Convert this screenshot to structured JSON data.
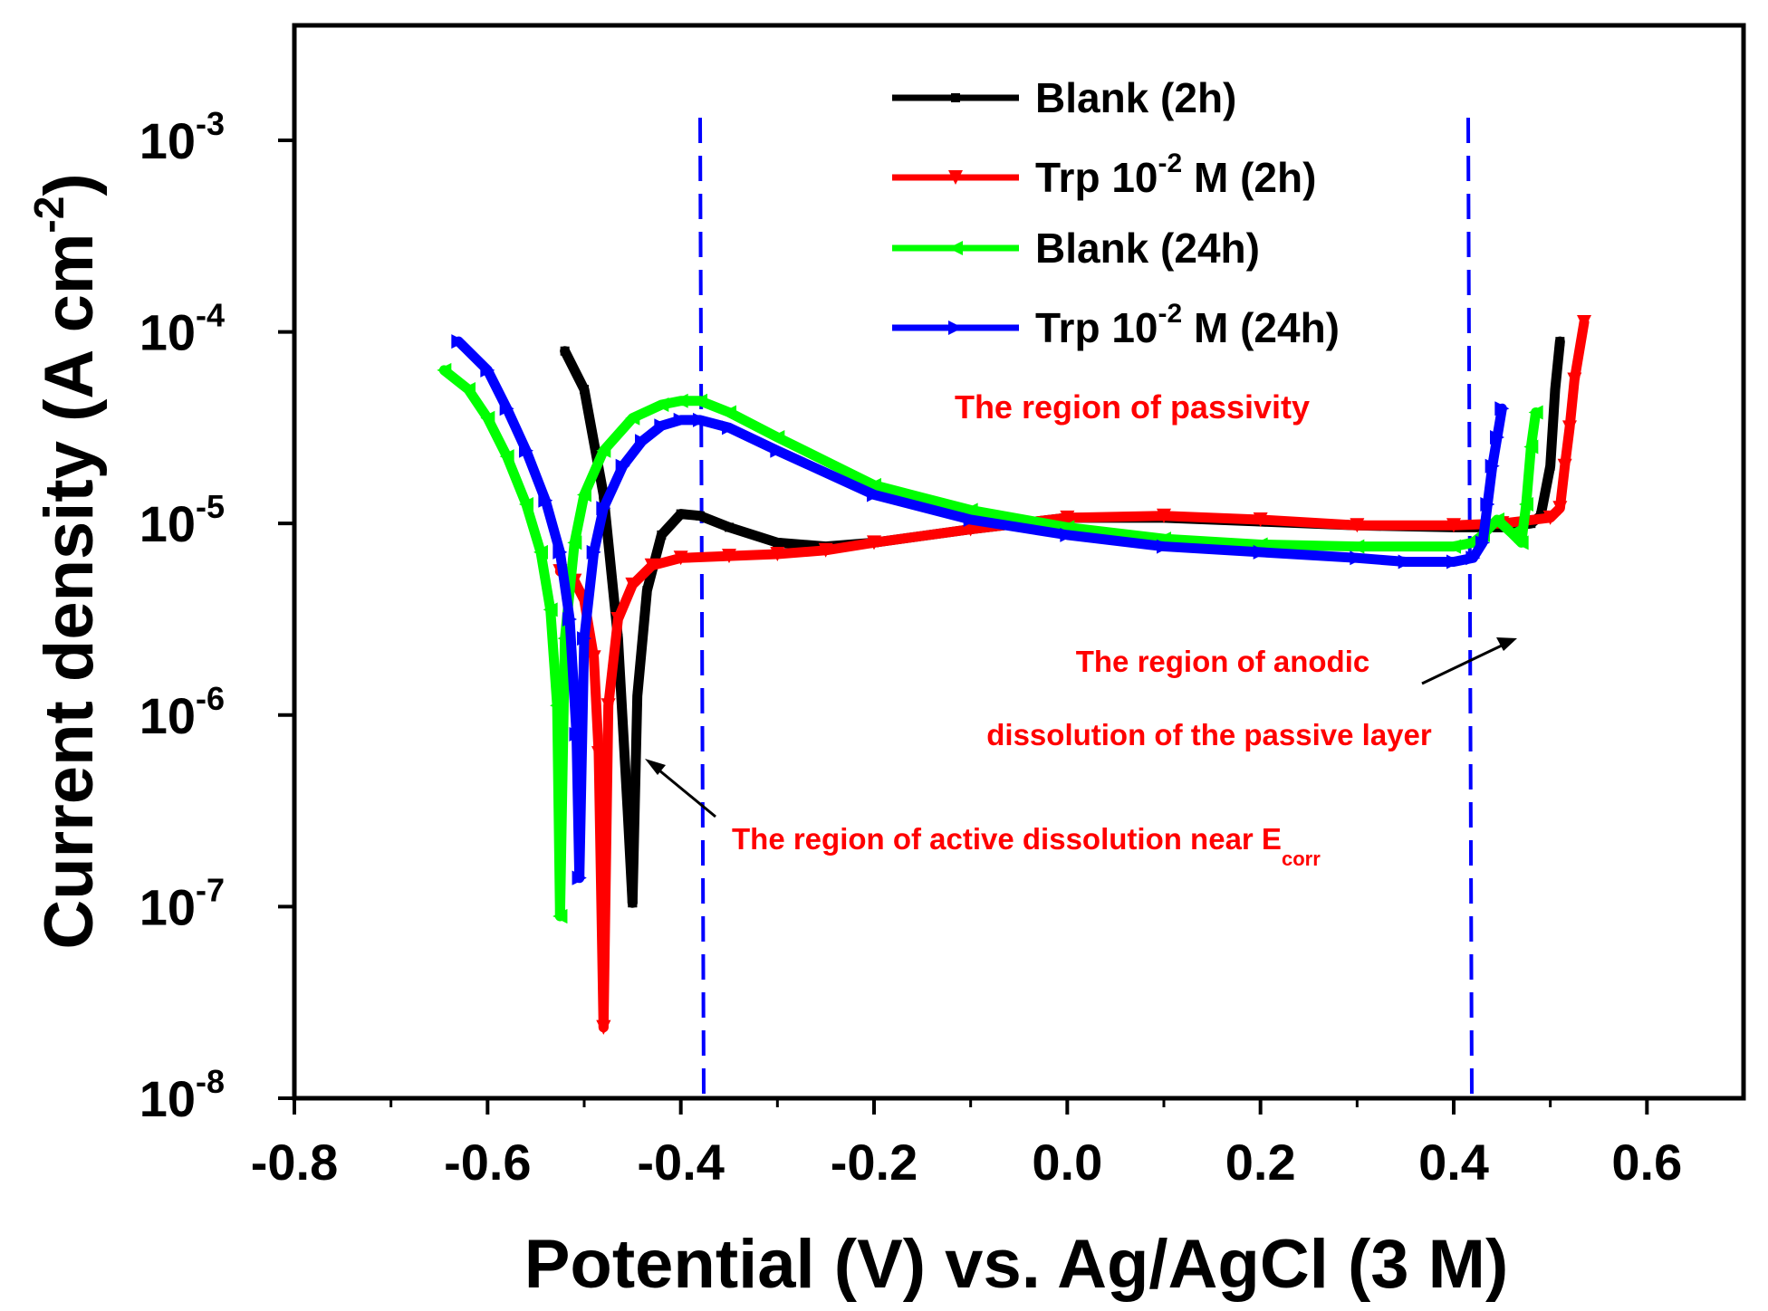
{
  "chart_data": {
    "type": "line",
    "title": "",
    "xlabel": "Potential (V) vs. Ag/AgCl (3 M)",
    "ylabel": {
      "main": "Current density (A cm",
      "exponent": "-2",
      "close": ")"
    },
    "xlim": [
      -0.8,
      0.7
    ],
    "ylim_log10": [
      -8,
      -2.4
    ],
    "y_scale": "log",
    "xticks": [
      {
        "value": -0.8,
        "label": "-0.8"
      },
      {
        "value": -0.6,
        "label": "-0.6"
      },
      {
        "value": -0.4,
        "label": "-0.4"
      },
      {
        "value": -0.2,
        "label": "-0.2"
      },
      {
        "value": 0.0,
        "label": "0.0"
      },
      {
        "value": 0.2,
        "label": "0.2"
      },
      {
        "value": 0.4,
        "label": "0.4"
      },
      {
        "value": 0.6,
        "label": "0.6"
      }
    ],
    "yticks": [
      {
        "value": -3,
        "base": "10",
        "exp": "-3"
      },
      {
        "value": -4,
        "base": "10",
        "exp": "-4"
      },
      {
        "value": -5,
        "base": "10",
        "exp": "-5"
      },
      {
        "value": -6,
        "base": "10",
        "exp": "-6"
      },
      {
        "value": -7,
        "base": "10",
        "exp": "-7"
      },
      {
        "value": -8,
        "base": "10",
        "exp": "-8"
      }
    ],
    "legend": {
      "placement": "top-right",
      "entries": [
        {
          "label_pre": "Blank (2h)",
          "sup": "",
          "label_post": "",
          "color": "#000000",
          "marker": "square"
        },
        {
          "label_pre": "Trp 10",
          "sup": "-2",
          "label_post": " M (2h)",
          "color": "#ff0000",
          "marker": "triangle-down"
        },
        {
          "label_pre": "Blank (24h)",
          "sup": "",
          "label_post": "",
          "color": "#00ff00",
          "marker": "triangle-left"
        },
        {
          "label_pre": " Trp 10",
          "sup": "-2",
          "label_post": " M (24h)",
          "color": "#0000ff",
          "marker": "triangle-right"
        }
      ]
    },
    "series": [
      {
        "name": "Blank (2h)",
        "color": "#000000",
        "marker": "square",
        "cathodic": {
          "x": [
            -0.52,
            -0.5,
            -0.48,
            -0.465,
            -0.455,
            -0.45
          ],
          "log_y": [
            -4.1,
            -4.3,
            -4.85,
            -5.6,
            -6.5,
            -6.98
          ]
        },
        "anodic": {
          "x": [
            -0.45,
            -0.445,
            -0.435,
            -0.42,
            -0.4,
            -0.38,
            -0.35,
            -0.3,
            -0.25,
            -0.2,
            -0.1,
            0.0,
            0.1,
            0.2,
            0.3,
            0.4,
            0.45,
            0.48,
            0.49,
            0.5,
            0.505,
            0.51
          ],
          "log_y": [
            -6.98,
            -5.9,
            -5.35,
            -5.06,
            -4.95,
            -4.96,
            -5.02,
            -5.1,
            -5.12,
            -5.1,
            -5.03,
            -4.97,
            -4.97,
            -4.99,
            -5.01,
            -5.02,
            -5.02,
            -5.0,
            -4.96,
            -4.7,
            -4.3,
            -4.05
          ]
        }
      },
      {
        "name": "Trp 10-2 M (2h)",
        "color": "#ff0000",
        "marker": "triangle-down",
        "cathodic": {
          "x": [
            -0.525,
            -0.51,
            -0.5,
            -0.49,
            -0.485,
            -0.48
          ],
          "log_y": [
            -5.25,
            -5.3,
            -5.4,
            -5.7,
            -6.2,
            -7.63
          ]
        },
        "anodic": {
          "x": [
            -0.48,
            -0.475,
            -0.465,
            -0.45,
            -0.43,
            -0.4,
            -0.35,
            -0.3,
            -0.25,
            -0.2,
            -0.1,
            0.0,
            0.1,
            0.2,
            0.3,
            0.4,
            0.45,
            0.5,
            0.51,
            0.515,
            0.52,
            0.525,
            0.535
          ],
          "log_y": [
            -7.63,
            -5.95,
            -5.5,
            -5.32,
            -5.22,
            -5.18,
            -5.17,
            -5.16,
            -5.14,
            -5.1,
            -5.03,
            -4.97,
            -4.96,
            -4.98,
            -5.01,
            -5.01,
            -5.0,
            -4.97,
            -4.92,
            -4.7,
            -4.5,
            -4.25,
            -3.95
          ]
        }
      },
      {
        "name": "Blank (24h)",
        "color": "#00ff00",
        "marker": "triangle-left",
        "cathodic": {
          "x": [
            -0.645,
            -0.62,
            -0.6,
            -0.58,
            -0.56,
            -0.545,
            -0.535,
            -0.528,
            -0.525
          ],
          "log_y": [
            -4.2,
            -4.3,
            -4.45,
            -4.65,
            -4.9,
            -5.15,
            -5.45,
            -5.95,
            -7.05
          ]
        },
        "anodic": {
          "x": [
            -0.525,
            -0.52,
            -0.51,
            -0.5,
            -0.48,
            -0.45,
            -0.42,
            -0.4,
            -0.38,
            -0.35,
            -0.3,
            -0.2,
            -0.1,
            0.0,
            0.1,
            0.2,
            0.3,
            0.4,
            0.42,
            0.43,
            0.445,
            0.46,
            0.47,
            0.475,
            0.48,
            0.485
          ],
          "log_y": [
            -7.05,
            -5.6,
            -5.1,
            -4.85,
            -4.62,
            -4.45,
            -4.38,
            -4.36,
            -4.36,
            -4.42,
            -4.55,
            -4.8,
            -4.93,
            -5.02,
            -5.08,
            -5.11,
            -5.12,
            -5.12,
            -5.1,
            -5.06,
            -4.98,
            -5.05,
            -5.1,
            -4.9,
            -4.6,
            -4.42
          ]
        }
      },
      {
        "name": "Trp 10-2 M (24h)",
        "color": "#0000ff",
        "marker": "triangle-right",
        "cathodic": {
          "x": [
            -0.63,
            -0.6,
            -0.58,
            -0.56,
            -0.54,
            -0.525,
            -0.515,
            -0.508,
            -0.505
          ],
          "log_y": [
            -4.05,
            -4.2,
            -4.4,
            -4.62,
            -4.88,
            -5.15,
            -5.5,
            -6.1,
            -6.85
          ]
        },
        "anodic": {
          "x": [
            -0.505,
            -0.5,
            -0.49,
            -0.48,
            -0.46,
            -0.44,
            -0.42,
            -0.4,
            -0.38,
            -0.35,
            -0.3,
            -0.2,
            -0.1,
            0.0,
            0.1,
            0.2,
            0.3,
            0.35,
            0.4,
            0.42,
            0.43,
            0.435,
            0.44,
            0.445,
            0.45
          ],
          "log_y": [
            -6.85,
            -5.6,
            -5.15,
            -4.92,
            -4.7,
            -4.57,
            -4.49,
            -4.46,
            -4.46,
            -4.5,
            -4.62,
            -4.85,
            -4.98,
            -5.06,
            -5.12,
            -5.15,
            -5.18,
            -5.2,
            -5.2,
            -5.18,
            -5.1,
            -4.9,
            -4.7,
            -4.55,
            -4.4
          ]
        }
      }
    ],
    "reference_lines": [
      {
        "orientation": "vertical",
        "x": -0.38,
        "style": "dashed",
        "color": "#0000ff"
      },
      {
        "orientation": "vertical",
        "x": 0.415,
        "style": "dashed",
        "color": "#0000ff"
      }
    ],
    "annotations": [
      {
        "key": "passivity",
        "text": "The region of passivity",
        "sub": "",
        "color": "#ff0000"
      },
      {
        "key": "anodic1",
        "text": "The region of anodic",
        "sub": "",
        "color": "#ff0000"
      },
      {
        "key": "anodic2",
        "text": "dissolution of the passive layer",
        "sub": "",
        "color": "#ff0000"
      },
      {
        "key": "active",
        "text": "The region of active dissolution near E",
        "sub": "corr",
        "color": "#ff0000"
      }
    ]
  }
}
